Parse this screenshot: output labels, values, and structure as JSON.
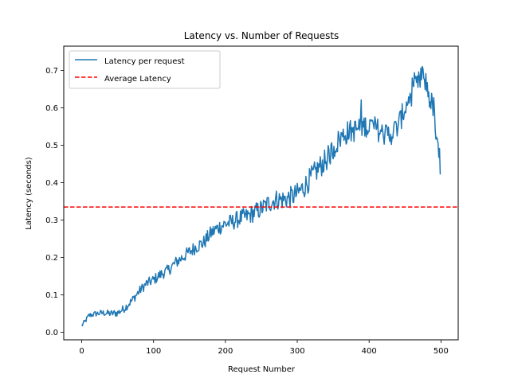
{
  "chart_data": {
    "type": "line",
    "title": "Latency vs. Number of Requests",
    "xlabel": "Request Number",
    "ylabel": "Latency (seconds)",
    "xlim": [
      -25,
      524
    ],
    "ylim": [
      -0.02,
      0.765
    ],
    "xticks": [
      0,
      100,
      200,
      300,
      400,
      500
    ],
    "yticks": [
      0.0,
      0.1,
      0.2,
      0.3,
      0.4,
      0.5,
      0.6,
      0.7
    ],
    "grid": false,
    "legend_position": "top-left",
    "series": [
      {
        "name": "Latency per request",
        "style": "solid",
        "color": "#1f77b4",
        "anchors": [
          [
            0,
            0.018
          ],
          [
            5,
            0.03
          ],
          [
            10,
            0.045
          ],
          [
            20,
            0.05
          ],
          [
            30,
            0.052
          ],
          [
            40,
            0.05
          ],
          [
            50,
            0.052
          ],
          [
            60,
            0.065
          ],
          [
            70,
            0.085
          ],
          [
            80,
            0.11
          ],
          [
            90,
            0.13
          ],
          [
            100,
            0.14
          ],
          [
            110,
            0.155
          ],
          [
            120,
            0.165
          ],
          [
            130,
            0.185
          ],
          [
            140,
            0.2
          ],
          [
            150,
            0.215
          ],
          [
            160,
            0.23
          ],
          [
            170,
            0.24
          ],
          [
            180,
            0.265
          ],
          [
            190,
            0.28
          ],
          [
            200,
            0.29
          ],
          [
            210,
            0.295
          ],
          [
            220,
            0.305
          ],
          [
            230,
            0.31
          ],
          [
            240,
            0.32
          ],
          [
            250,
            0.33
          ],
          [
            260,
            0.345
          ],
          [
            270,
            0.355
          ],
          [
            280,
            0.355
          ],
          [
            290,
            0.36
          ],
          [
            300,
            0.37
          ],
          [
            310,
            0.39
          ],
          [
            320,
            0.415
          ],
          [
            330,
            0.44
          ],
          [
            340,
            0.46
          ],
          [
            350,
            0.49
          ],
          [
            360,
            0.52
          ],
          [
            370,
            0.535
          ],
          [
            380,
            0.54
          ],
          [
            390,
            0.55
          ],
          [
            400,
            0.555
          ],
          [
            410,
            0.545
          ],
          [
            420,
            0.53
          ],
          [
            430,
            0.53
          ],
          [
            440,
            0.55
          ],
          [
            450,
            0.6
          ],
          [
            460,
            0.64
          ],
          [
            470,
            0.67
          ],
          [
            475,
            0.69
          ],
          [
            480,
            0.66
          ],
          [
            485,
            0.62
          ],
          [
            490,
            0.6
          ],
          [
            494,
            0.5
          ],
          [
            496,
            0.48
          ],
          [
            498,
            0.45
          ],
          [
            499,
            0.43
          ]
        ],
        "noise_amplitude": 0.018
      },
      {
        "name": "Average Latency",
        "style": "dashed",
        "color": "#ff0000",
        "y": 0.335
      }
    ]
  }
}
